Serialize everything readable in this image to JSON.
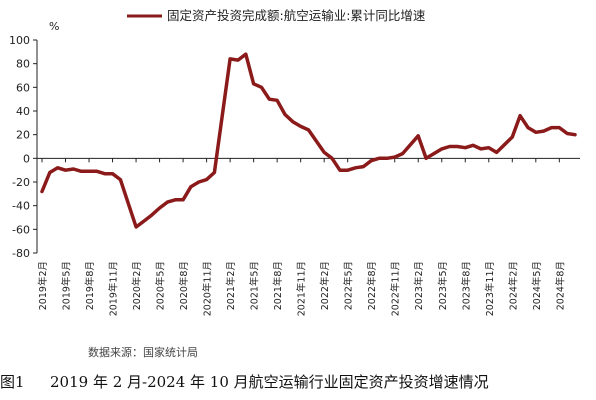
{
  "chart_data": {
    "type": "line",
    "title": "",
    "legend": [
      "固定资产投资完成额:航空运输业:累计同比增速"
    ],
    "legend_position": "top",
    "ylabel": "%",
    "xlabel": "",
    "ylim": [
      -80,
      100
    ],
    "yticks": [
      100,
      80,
      60,
      40,
      20,
      0,
      -20,
      -40,
      -60,
      -80
    ],
    "xtick_labels": [
      "2019年2月",
      "2019年5月",
      "2019年8月",
      "2019年11月",
      "2020年2月",
      "2020年5月",
      "2020年8月",
      "2020年11月",
      "2021年2月",
      "2021年5月",
      "2021年8月",
      "2021年11月",
      "2022年2月",
      "2022年5月",
      "2022年8月",
      "2022年11月",
      "2023年2月",
      "2023年5月",
      "2023年8月",
      "2023年11月",
      "2024年2月",
      "2024年5月",
      "2024年8月"
    ],
    "grid": false,
    "color": "#8b1a1a",
    "series": [
      {
        "name": "固定资产投资完成额:航空运输业:累计同比增速",
        "x": [
          "2019-02",
          "2019-03",
          "2019-04",
          "2019-05",
          "2019-06",
          "2019-07",
          "2019-08",
          "2019-09",
          "2019-10",
          "2019-11",
          "2019-12",
          "2020-02",
          "2020-03",
          "2020-04",
          "2020-05",
          "2020-06",
          "2020-07",
          "2020-08",
          "2020-09",
          "2020-10",
          "2020-11",
          "2020-12",
          "2021-02",
          "2021-03",
          "2021-04",
          "2021-05",
          "2021-06",
          "2021-07",
          "2021-08",
          "2021-09",
          "2021-10",
          "2021-11",
          "2021-12",
          "2022-02",
          "2022-03",
          "2022-04",
          "2022-05",
          "2022-06",
          "2022-07",
          "2022-08",
          "2022-09",
          "2022-10",
          "2022-11",
          "2022-12",
          "2023-02",
          "2023-03",
          "2023-04",
          "2023-05",
          "2023-06",
          "2023-07",
          "2023-08",
          "2023-09",
          "2023-10",
          "2023-11",
          "2023-12",
          "2024-02",
          "2024-03",
          "2024-04",
          "2024-05",
          "2024-06",
          "2024-07",
          "2024-08",
          "2024-09",
          "2024-10"
        ],
        "values": [
          -28,
          -12,
          -8,
          -10,
          -9,
          -11,
          -11,
          -11,
          -13,
          -13,
          -18,
          -58,
          -53,
          -48,
          -42,
          -37,
          -35,
          -35,
          -24,
          -20,
          -18,
          -12,
          84,
          83,
          88,
          63,
          60,
          50,
          49,
          37,
          31,
          27,
          24,
          5,
          0,
          -10,
          -10,
          -8,
          -7,
          -2,
          0,
          0,
          1,
          4,
          19,
          0,
          4,
          8,
          10,
          10,
          9,
          11,
          8,
          9,
          5,
          18,
          36,
          26,
          22,
          23,
          26,
          26,
          21,
          20
        ]
      }
    ]
  },
  "source_text": "数据来源：国家统计局",
  "caption": {
    "figure_label": "图1",
    "text": "2019 年 2 月-2024 年 10 月航空运输行业固定资产投资增速情况"
  }
}
